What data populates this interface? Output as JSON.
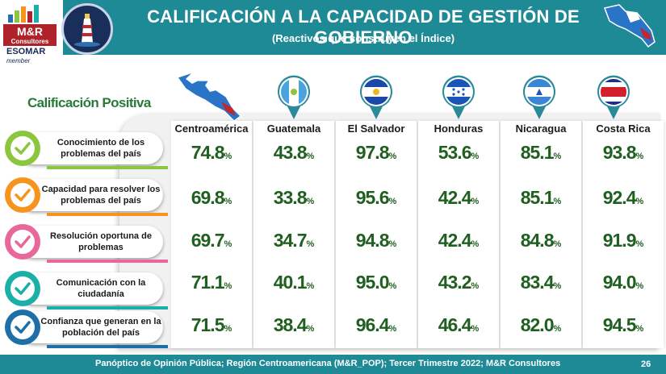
{
  "header": {
    "title": "CALIFICACIÓN A LA CAPACIDAD DE GESTIÓN DE GOBIERNO",
    "subtitle": "(Reactivos que construyen el Índice)"
  },
  "logo": {
    "brand": "M&R",
    "sub": "Consultores",
    "esomar": "ESOMAR",
    "member": "member"
  },
  "section_label": "Calificación Positiva",
  "footer": {
    "source": "Panóptico de Opinión Pública; Región Centroamericana (M&R_POP); Tercer Trimestre 2022; M&R Consultores",
    "page": "26"
  },
  "colors": {
    "header": "#1e8a96",
    "value": "#1f5f1f",
    "label_green": "#2a7a3a",
    "row_colors": [
      "#8cc63f",
      "#f7941d",
      "#e9689b",
      "#1ab0a8",
      "#1e6fa8"
    ]
  },
  "chart_data": {
    "type": "table",
    "unit": "%",
    "columns": [
      "Centroamérica",
      "Guatemala",
      "El Salvador",
      "Honduras",
      "Nicaragua",
      "Costa Rica"
    ],
    "rows": [
      {
        "label": "Conocimiento de los problemas del país",
        "values": [
          74.8,
          43.8,
          97.8,
          53.6,
          85.1,
          93.8
        ]
      },
      {
        "label": "Capacidad para resolver los problemas del país",
        "values": [
          69.8,
          33.8,
          95.6,
          42.4,
          85.1,
          92.4
        ]
      },
      {
        "label": "Resolución oportuna de problemas",
        "values": [
          69.7,
          34.7,
          94.8,
          42.4,
          84.8,
          91.9
        ]
      },
      {
        "label": "Comunicación con la ciudadanía",
        "values": [
          71.1,
          40.1,
          95.0,
          43.2,
          83.4,
          94.0
        ]
      },
      {
        "label": "Confianza que generan en la población del país",
        "values": [
          71.5,
          38.4,
          96.4,
          46.4,
          82.0,
          94.5
        ]
      }
    ],
    "value_labels": [
      [
        "74.8",
        "43.8",
        "97.8",
        "53.6",
        "85.1",
        "93.8"
      ],
      [
        "69.8",
        "33.8",
        "95.6",
        "42.4",
        "85.1",
        "92.4"
      ],
      [
        "69.7",
        "34.7",
        "94.8",
        "42.4",
        "84.8",
        "91.9"
      ],
      [
        "71.1",
        "40.1",
        "95.0",
        "43.2",
        "83.4",
        "94.0"
      ],
      [
        "71.5",
        "38.4",
        "96.4",
        "46.4",
        "82.0",
        "94.5"
      ]
    ]
  }
}
